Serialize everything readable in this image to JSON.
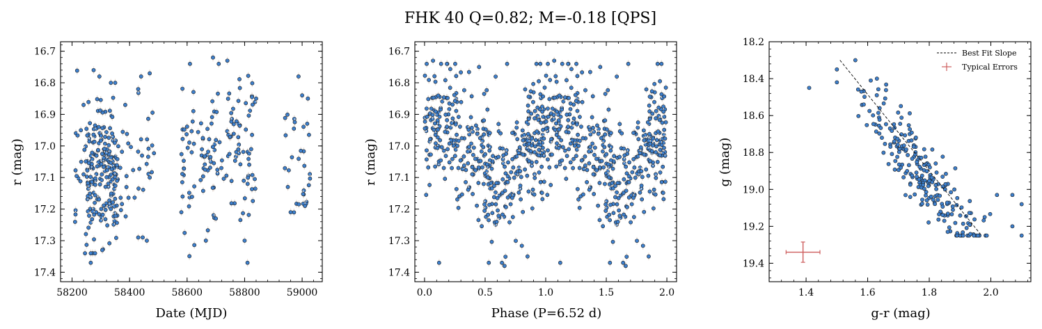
{
  "title": "FHK 40  Q=0.82; M=-0.18 [QPS]",
  "colors": {
    "point_fill": "#3d7fcc",
    "point_edge": "#1b1b1b",
    "errorbar": "#e6dcd4",
    "fit_line": "#000000",
    "typical_error": "#cd5c5c"
  },
  "chart_data": [
    {
      "type": "scatter",
      "xlabel": "Date (MJD)",
      "ylabel": "r (mag)",
      "xlim": [
        58160,
        59070
      ],
      "ylim": [
        17.43,
        16.67
      ],
      "y_inverted": true,
      "xticks": [
        58200,
        58400,
        58600,
        58800,
        59000
      ],
      "yticks": [
        16.7,
        16.8,
        16.9,
        17.0,
        17.1,
        17.2,
        17.3,
        17.4
      ],
      "seasons": [
        {
          "x_range": [
            58210,
            58490
          ],
          "y_mean": 17.08,
          "y_sd": 0.11,
          "n": 260
        },
        {
          "x_range": [
            58580,
            58840
          ],
          "y_mean": 17.02,
          "y_sd": 0.11,
          "n": 140
        },
        {
          "x_range": [
            58940,
            59030
          ],
          "y_mean": 17.05,
          "y_sd": 0.09,
          "n": 30
        }
      ],
      "points": [
        [
          58275,
          16.76
        ],
        [
          58295,
          16.78
        ],
        [
          58335,
          16.8
        ],
        [
          58350,
          16.8
        ],
        [
          58440,
          16.78
        ],
        [
          58470,
          16.77
        ],
        [
          58430,
          16.82
        ],
        [
          58610,
          16.74
        ],
        [
          58690,
          16.72
        ],
        [
          58710,
          16.74
        ],
        [
          58740,
          16.73
        ],
        [
          58840,
          16.85
        ],
        [
          58385,
          16.87
        ],
        [
          58240,
          16.87
        ],
        [
          58800,
          17.3
        ],
        [
          58810,
          17.37
        ],
        [
          58265,
          17.37
        ],
        [
          58265,
          17.34
        ],
        [
          58280,
          17.34
        ],
        [
          58245,
          17.34
        ],
        [
          58305,
          17.33
        ],
        [
          58460,
          17.3
        ],
        [
          58430,
          17.29
        ],
        [
          58700,
          17.23
        ],
        [
          58580,
          17.21
        ],
        [
          58960,
          17.21
        ],
        [
          59010,
          17.19
        ],
        [
          58470,
          17.1
        ],
        [
          58240,
          17.09
        ],
        [
          59020,
          16.85
        ],
        [
          59000,
          16.84
        ]
      ]
    },
    {
      "type": "scatter",
      "xlabel": "Phase (P=6.52 d)",
      "ylabel": "r (mag)",
      "xlim": [
        -0.08,
        2.08
      ],
      "ylim": [
        17.43,
        16.67
      ],
      "y_inverted": true,
      "xticks": [
        0.0,
        0.5,
        1.0,
        1.5,
        2.0
      ],
      "xtick_labels": [
        "0.0",
        "0.5",
        "1.0",
        "1.5",
        "2.0"
      ],
      "yticks": [
        16.7,
        16.8,
        16.9,
        17.0,
        17.1,
        17.2,
        17.3,
        17.4
      ],
      "period_days": 6.52,
      "model": {
        "mean": 17.02,
        "amplitude": 0.1,
        "phase_of_max_brightness": 0.12,
        "scatter_sd": 0.1,
        "n_per_cycle": 430
      },
      "points": [
        [
          0.07,
          16.73
        ],
        [
          1.07,
          16.73
        ],
        [
          0.12,
          17.37
        ],
        [
          1.12,
          17.37
        ],
        [
          0.66,
          17.38
        ],
        [
          1.66,
          17.38
        ],
        [
          0.45,
          16.75
        ],
        [
          1.45,
          16.75
        ],
        [
          0.85,
          17.35
        ],
        [
          1.85,
          17.35
        ]
      ]
    },
    {
      "type": "scatter",
      "xlabel": "g-r (mag)",
      "ylabel": "g (mag)",
      "xlim": [
        1.28,
        2.13
      ],
      "ylim": [
        19.5,
        18.2
      ],
      "y_inverted": true,
      "xticks": [
        1.4,
        1.6,
        1.8,
        2.0
      ],
      "xtick_labels": [
        "1.4",
        "1.6",
        "1.8",
        "2.0"
      ],
      "yticks": [
        18.2,
        18.4,
        18.6,
        18.8,
        19.0,
        19.2,
        19.4
      ],
      "yticks_labels": [
        "18.2",
        "18.4",
        "18.6",
        "18.8",
        "19.0",
        "19.2",
        "19.4"
      ],
      "best_fit": {
        "x": [
          1.51,
          1.97
        ],
        "y": [
          18.3,
          19.25
        ]
      },
      "typical_error": {
        "x": 1.39,
        "y": 19.34,
        "xerr": 0.055,
        "yerr": 0.055
      },
      "legend": {
        "position": "top-right",
        "entries": [
          "Best Fit Slope",
          "Typical Errors"
        ]
      },
      "cloud": {
        "slope": 2.06,
        "anchor": [
          1.75,
          18.86
        ],
        "x_mean": 1.77,
        "x_sd": 0.1,
        "resid_sd": 0.1,
        "n": 230
      },
      "points": [
        [
          1.41,
          18.45
        ],
        [
          1.56,
          18.3
        ],
        [
          1.63,
          18.4
        ],
        [
          1.5,
          18.42
        ],
        [
          1.61,
          18.41
        ],
        [
          2.1,
          19.08
        ],
        [
          2.07,
          19.2
        ],
        [
          2.02,
          19.03
        ],
        [
          2.07,
          19.03
        ],
        [
          1.91,
          19.25
        ],
        [
          1.86,
          19.23
        ],
        [
          1.98,
          19.15
        ]
      ]
    }
  ]
}
